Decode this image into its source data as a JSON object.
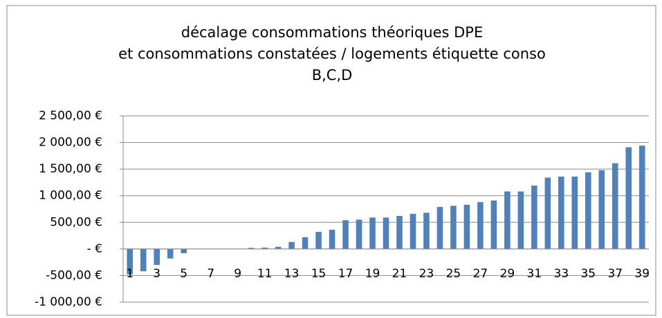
{
  "chart_data": {
    "type": "bar",
    "title": [
      "décalage consommations théoriques DPE",
      "et consommations constatées / logements étiquette conso",
      "B,C,D"
    ],
    "categories": [
      "1",
      null,
      "3",
      null,
      "5",
      null,
      "7",
      null,
      "9",
      null,
      "11",
      null,
      "13",
      null,
      "15",
      null,
      "17",
      null,
      "19",
      null,
      "21",
      null,
      "23",
      null,
      "25",
      null,
      "27",
      null,
      "29",
      null,
      "31",
      null,
      "33",
      null,
      "35",
      null,
      "37",
      null,
      "39"
    ],
    "values": [
      -480,
      -420,
      -300,
      -180,
      -80,
      -5,
      0,
      0,
      5,
      20,
      25,
      40,
      130,
      220,
      320,
      360,
      540,
      550,
      590,
      590,
      620,
      660,
      680,
      790,
      810,
      830,
      880,
      910,
      1080,
      1080,
      1190,
      1340,
      1360,
      1360,
      1440,
      1480,
      1610,
      1910,
      1940
    ],
    "color": "#4f81bd",
    "ylim": [
      -1000,
      2500
    ],
    "yticks": [
      {
        "value": -1000,
        "label": "-1 000,00 €"
      },
      {
        "value": -500,
        "label": "-500,00 €"
      },
      {
        "value": 0,
        "label": "-   €"
      },
      {
        "value": 500,
        "label": "500,00 €"
      },
      {
        "value": 1000,
        "label": "1 000,00 €"
      },
      {
        "value": 1500,
        "label": "1 500,00 €"
      },
      {
        "value": 2000,
        "label": "2 000,00 €"
      },
      {
        "value": 2500,
        "label": "2 500,00 €"
      }
    ],
    "grid": true
  }
}
